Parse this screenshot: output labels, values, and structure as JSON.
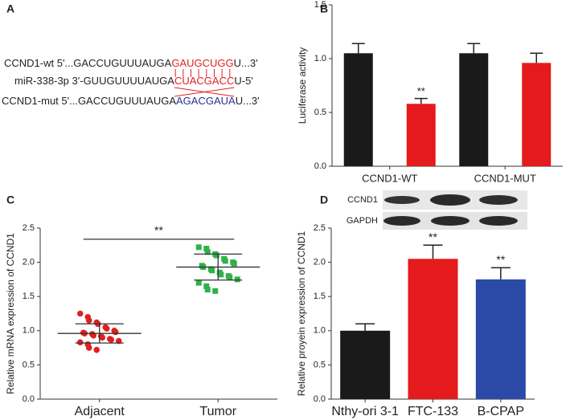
{
  "panel_a": {
    "label": "A",
    "lines": [
      {
        "parts": [
          "CCND1-wt 5'...GACCUGUUUAUGA",
          "GAUGCUGG",
          "U...3'"
        ],
        "highlight_color": "#e02020"
      },
      {
        "parts": [
          "miR-338-3p 3'-GUUGUUUUAUGA",
          "CUACGACC",
          "U-5'"
        ],
        "highlight_color": "#e02020"
      },
      {
        "parts": [
          "CCND1-mut 5'...GACCUGUUUAUGA",
          "AGACGAUA",
          "U...3'"
        ],
        "highlight_color": "#2e3192"
      }
    ]
  },
  "chart_data": [
    {
      "type": "bar",
      "panel_label": "B",
      "y_label": "Luciferase activity",
      "categories": [
        "CCND1-WT",
        "CCND1-MUT"
      ],
      "series": [
        {
          "color": "#1a1a1a",
          "values": [
            1.05,
            1.05
          ],
          "errors": [
            0.09,
            0.09
          ],
          "annotations": [
            null,
            null
          ]
        },
        {
          "color": "#e41a1c",
          "values": [
            0.58,
            0.96
          ],
          "errors": [
            0.05,
            0.09
          ],
          "annotations": [
            "**",
            null
          ]
        }
      ],
      "ylim": [
        0,
        1.5
      ],
      "yticks": [
        {
          "value": 0,
          "label": "0.0"
        },
        0.5,
        {
          "value": 1,
          "label": "1.0"
        },
        1.5
      ]
    },
    {
      "type": "scatter",
      "panel_label": "C",
      "y_label": "Relative mRNA expression of CCND1",
      "categories": [
        "Adjacent",
        "Tumor"
      ],
      "colors": [
        "#e02020",
        "#2db34a"
      ],
      "markers": [
        "circle",
        "square"
      ],
      "points": [
        [
          1.25,
          1.2,
          1.15,
          1.12,
          1.1,
          1.05,
          1.03,
          1.0,
          0.98,
          0.97,
          0.96,
          0.95,
          0.93,
          0.92,
          0.9,
          0.88,
          0.87,
          0.85,
          0.83,
          0.8,
          0.75,
          0.72
        ],
        [
          2.22,
          2.2,
          2.15,
          2.12,
          2.1,
          2.05,
          2.02,
          2.0,
          1.98,
          1.95,
          1.93,
          1.9,
          1.88,
          1.85,
          1.82,
          1.8,
          1.78,
          1.75,
          1.7,
          1.65,
          1.6,
          1.58
        ]
      ],
      "means": [
        0.96,
        1.93
      ],
      "errors": [
        0.14,
        0.19
      ],
      "significance": "**",
      "ylim": [
        0,
        2.5
      ],
      "yticks": [
        {
          "value": 0,
          "label": "0.0"
        },
        0.5,
        {
          "value": 1,
          "label": "1.0"
        },
        1.5,
        {
          "value": 2,
          "label": "2.0"
        },
        2.5
      ]
    },
    {
      "type": "bar",
      "panel_label": "D",
      "y_label": "Relative proyein expression of CCND1",
      "categories": [
        "Nthy-ori 3-1",
        "FTC-133",
        "B-CPAP"
      ],
      "values": [
        1.0,
        2.05,
        1.75
      ],
      "errors": [
        0.1,
        0.2,
        0.17
      ],
      "colors": [
        "#1a1a1a",
        "#e41a1c",
        "#2b4aa8"
      ],
      "annotations": [
        null,
        "**",
        "**"
      ],
      "blot_labels": [
        "CCND1",
        "GAPDH"
      ],
      "ylim": [
        0,
        2.5
      ],
      "yticks": [
        {
          "value": 0,
          "label": "0.0"
        },
        0.5,
        {
          "value": 1,
          "label": "1.0"
        },
        1.5,
        {
          "value": 2,
          "label": "2.0"
        },
        2.5
      ]
    }
  ]
}
